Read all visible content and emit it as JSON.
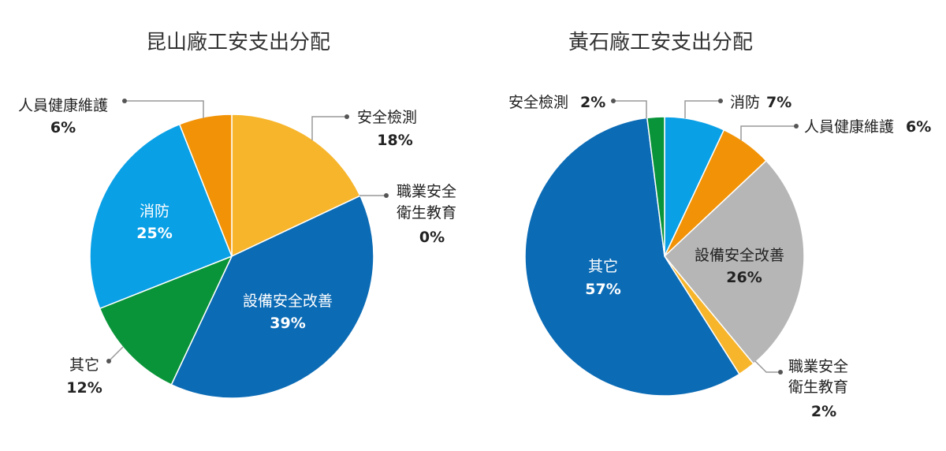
{
  "chart_data": [
    {
      "type": "pie",
      "title": "昆山廠工安支出分配",
      "unit": "%",
      "slices": [
        {
          "label": "安全檢測",
          "value": 18,
          "display": "18%",
          "color": "#f7b52c"
        },
        {
          "label": "職業安全衛生教育",
          "lines": [
            "職業安全",
            "衛生教育"
          ],
          "value": 0,
          "display": "0%",
          "color": "#f7b52c"
        },
        {
          "label": "設備安全改善",
          "value": 39,
          "display": "39%",
          "color": "#0b6bb5"
        },
        {
          "label": "其它",
          "value": 12,
          "display": "12%",
          "color": "#0a9439"
        },
        {
          "label": "消防",
          "value": 25,
          "display": "25%",
          "color": "#0aa0e6"
        },
        {
          "label": "人員健康維護",
          "value": 6,
          "display": "6%",
          "color": "#f29307"
        }
      ]
    },
    {
      "type": "pie",
      "title": "黃石廠工安支出分配",
      "unit": "%",
      "slices": [
        {
          "label": "消防",
          "value": 7,
          "display": "7%",
          "color": "#0aa0e6"
        },
        {
          "label": "人員健康維護",
          "value": 6,
          "display": "6%",
          "color": "#f29307"
        },
        {
          "label": "設備安全改善",
          "value": 26,
          "display": "26%",
          "color": "#b6b6b6"
        },
        {
          "label": "職業安全衛生教育",
          "lines": [
            "職業安全",
            "衛生教育"
          ],
          "value": 2,
          "display": "2%",
          "color": "#f7b52c"
        },
        {
          "label": "其它",
          "value": 57,
          "display": "57%",
          "color": "#0b6bb5"
        },
        {
          "label": "安全檢測",
          "value": 2,
          "display": "2%",
          "color": "#0a9439"
        }
      ]
    }
  ]
}
